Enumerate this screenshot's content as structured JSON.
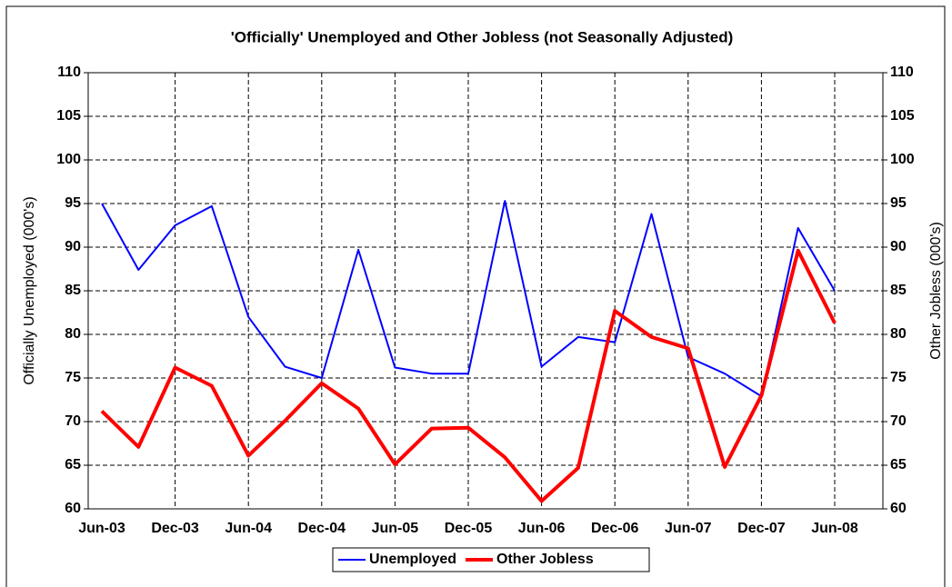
{
  "chart_data": {
    "type": "line",
    "title": "'Officially' Unemployed and Other Jobless (not Seasonally Adjusted)",
    "y_label": "Officially Unemployed (000's)",
    "y2_label": "Other Jobless (000's)",
    "categories": [
      "Jun-03",
      null,
      "Dec-03",
      null,
      "Jun-04",
      null,
      "Dec-04",
      null,
      "Jun-05",
      null,
      "Dec-05",
      null,
      "Jun-06",
      null,
      "Dec-06",
      null,
      "Jun-07",
      null,
      "Dec-07",
      null,
      "Jun-08"
    ],
    "series": [
      {
        "name": "Unemployed",
        "color": "#0000ff",
        "width": 2,
        "values": [
          95,
          87.4,
          92.5,
          94.7,
          82,
          76.3,
          75,
          89.7,
          76.2,
          75.5,
          75.5,
          95.3,
          76.3,
          79.7,
          79.1,
          93.8,
          77.4,
          75.5,
          72.9,
          92.2,
          85
        ]
      },
      {
        "name": "Other Jobless",
        "color": "#ff0000",
        "width": 4,
        "axis": "y2",
        "values": [
          71.2,
          67.1,
          76.2,
          74.1,
          66.1,
          70.1,
          74.4,
          71.5,
          65.1,
          69.2,
          69.3,
          65.9,
          60.9,
          64.7,
          82.7,
          79.7,
          78.4,
          64.8,
          73,
          89.6,
          81.3
        ]
      }
    ],
    "ylim": [
      60,
      110
    ],
    "yticks": [
      60,
      65,
      70,
      75,
      80,
      85,
      90,
      95,
      100,
      105,
      110
    ],
    "y2lim": [
      60,
      110
    ],
    "y2ticks": [
      60,
      65,
      70,
      75,
      80,
      85,
      90,
      95,
      100,
      105,
      110
    ],
    "grid": true,
    "legend": "bottom"
  }
}
